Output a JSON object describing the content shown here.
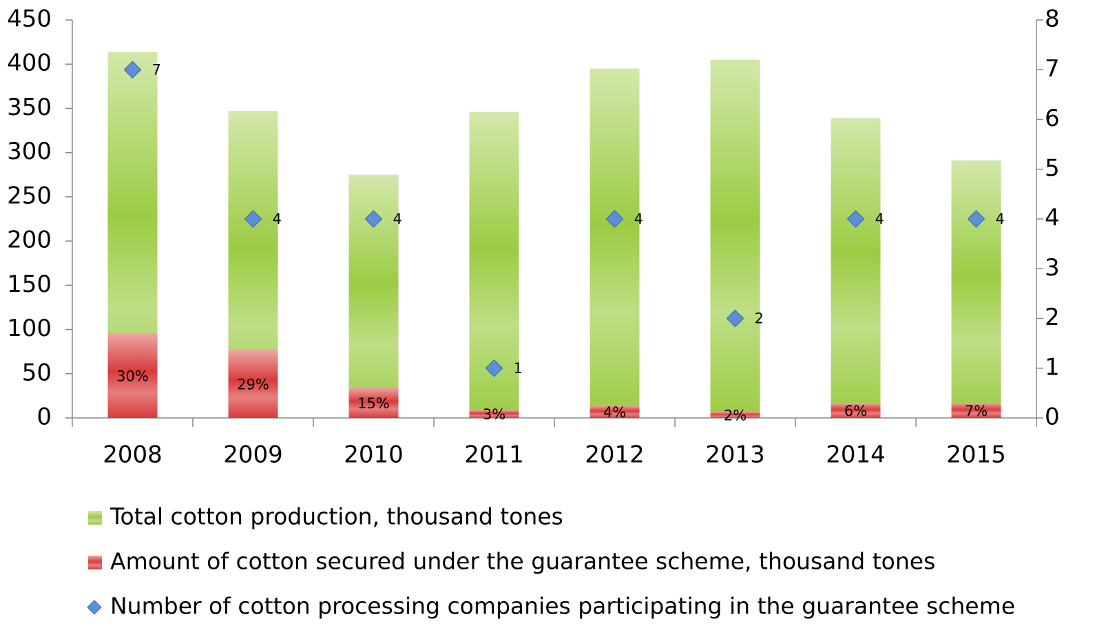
{
  "chart_data": {
    "type": "bar",
    "categories": [
      "2008",
      "2009",
      "2010",
      "2011",
      "2012",
      "2013",
      "2014",
      "2015"
    ],
    "series": [
      {
        "name": "Total cotton production, thousand tones",
        "color": "#9ccc44",
        "values": [
          414,
          347,
          275,
          346,
          395,
          405,
          339,
          291
        ]
      },
      {
        "name": "Amount of cotton secured under the guarantee scheme, thousand tones",
        "color": "#d93b3b",
        "values": [
          96,
          77,
          34,
          9,
          14,
          7,
          17,
          17
        ],
        "annotations": [
          "30%",
          "29%",
          "15%",
          "3%",
          "4%",
          "2%",
          "6%",
          "7%"
        ]
      },
      {
        "name": "Number of cotton processing companies participating in the guarantee scheme",
        "color": "#5b8fd8",
        "type": "scatter",
        "axis": "y2",
        "values": [
          7,
          4,
          4,
          1,
          4,
          2,
          4,
          4
        ]
      }
    ],
    "ylim": [
      0,
      450
    ],
    "yticks": [
      0,
      50,
      100,
      150,
      200,
      250,
      300,
      350,
      400,
      450
    ],
    "y2lim": [
      0,
      8
    ],
    "y2ticks": [
      0,
      1,
      2,
      3,
      4,
      5,
      6,
      7,
      8
    ],
    "legend": "bottom"
  }
}
